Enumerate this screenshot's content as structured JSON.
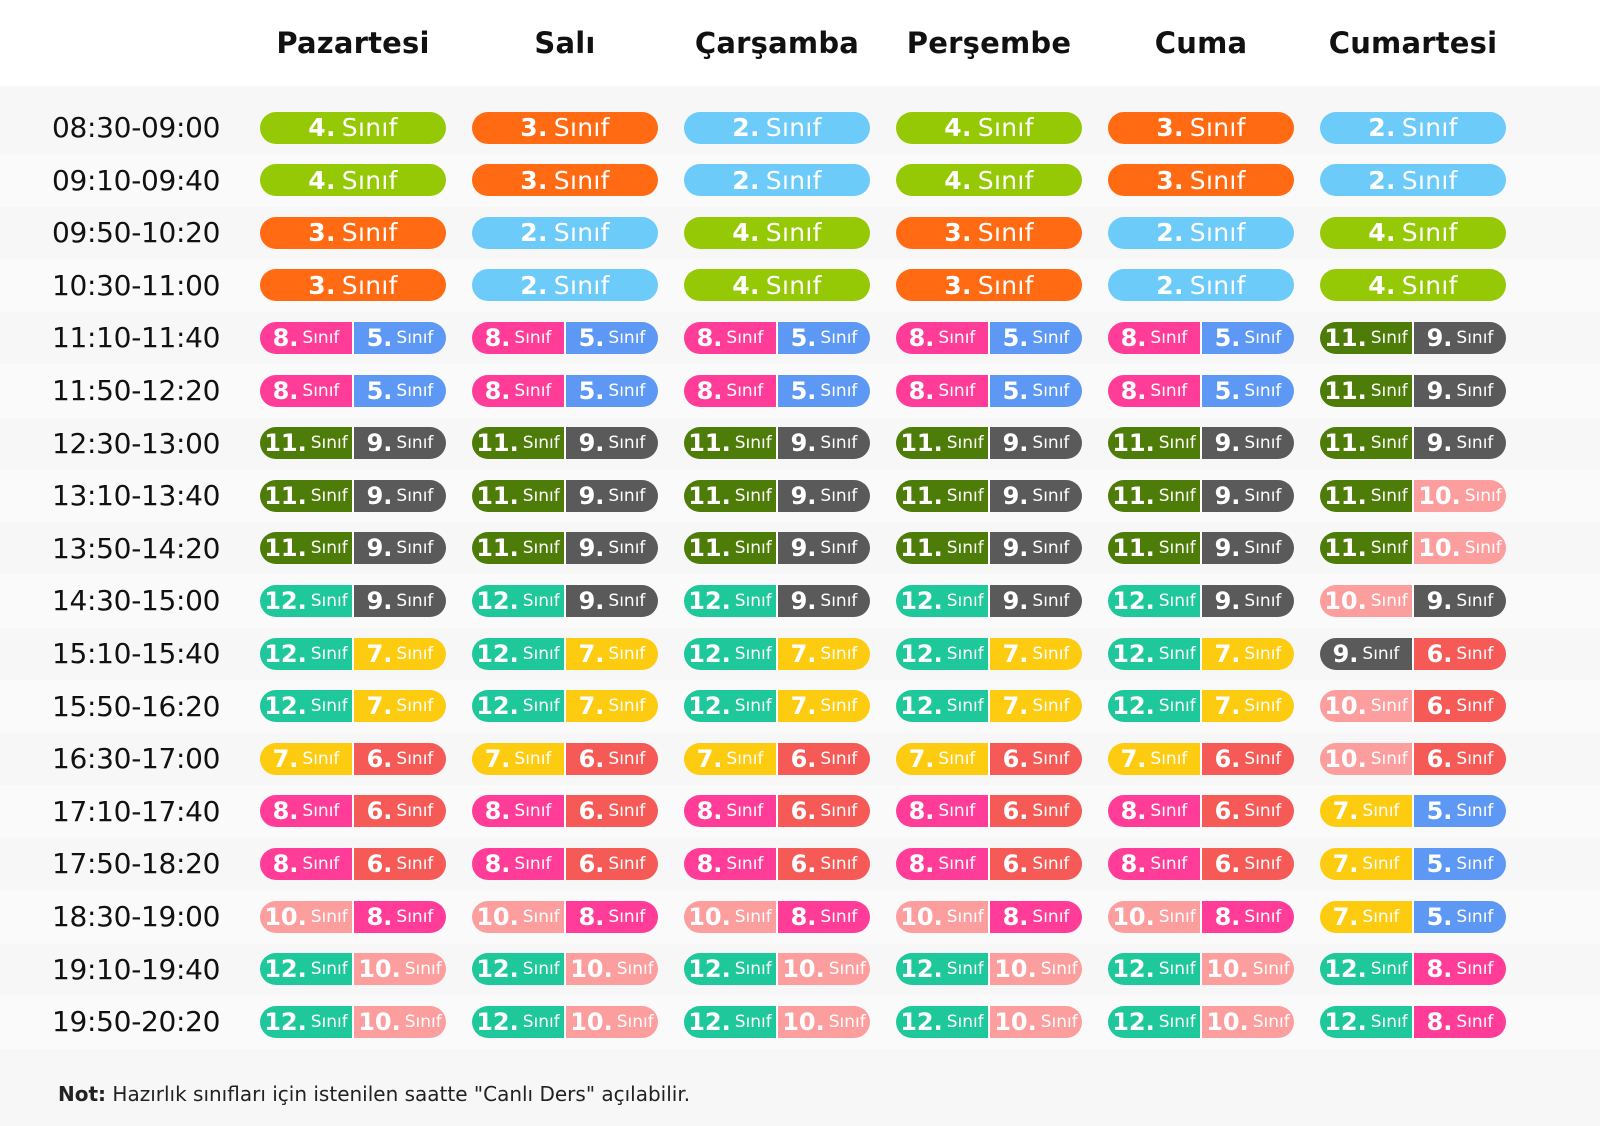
{
  "days": [
    "Pazartesi",
    "Salı",
    "Çarşamba",
    "Perşembe",
    "Cuma",
    "Cumartesi"
  ],
  "class_word": "Sınıf",
  "colors": {
    "2": "#6ccbf8",
    "3": "#ff6a13",
    "4": "#96c905",
    "5": "#5e98f5",
    "6": "#f65a57",
    "7": "#fdcb10",
    "8": "#ff3d98",
    "9": "#5a5a5a",
    "10": "#fc9e9e",
    "11": "#4d7d08",
    "12": "#1fc89b"
  },
  "schedule": [
    {
      "time": "08:30-09:00",
      "slots": [
        [
          "4"
        ],
        [
          "3"
        ],
        [
          "2"
        ],
        [
          "4"
        ],
        [
          "3"
        ],
        [
          "2"
        ]
      ]
    },
    {
      "time": "09:10-09:40",
      "slots": [
        [
          "4"
        ],
        [
          "3"
        ],
        [
          "2"
        ],
        [
          "4"
        ],
        [
          "3"
        ],
        [
          "2"
        ]
      ]
    },
    {
      "time": "09:50-10:20",
      "slots": [
        [
          "3"
        ],
        [
          "2"
        ],
        [
          "4"
        ],
        [
          "3"
        ],
        [
          "2"
        ],
        [
          "4"
        ]
      ]
    },
    {
      "time": "10:30-11:00",
      "slots": [
        [
          "3"
        ],
        [
          "2"
        ],
        [
          "4"
        ],
        [
          "3"
        ],
        [
          "2"
        ],
        [
          "4"
        ]
      ]
    },
    {
      "time": "11:10-11:40",
      "slots": [
        [
          "8",
          "5"
        ],
        [
          "8",
          "5"
        ],
        [
          "8",
          "5"
        ],
        [
          "8",
          "5"
        ],
        [
          "8",
          "5"
        ],
        [
          "11",
          "9"
        ]
      ]
    },
    {
      "time": "11:50-12:20",
      "slots": [
        [
          "8",
          "5"
        ],
        [
          "8",
          "5"
        ],
        [
          "8",
          "5"
        ],
        [
          "8",
          "5"
        ],
        [
          "8",
          "5"
        ],
        [
          "11",
          "9"
        ]
      ]
    },
    {
      "time": "12:30-13:00",
      "slots": [
        [
          "11",
          "9"
        ],
        [
          "11",
          "9"
        ],
        [
          "11",
          "9"
        ],
        [
          "11",
          "9"
        ],
        [
          "11",
          "9"
        ],
        [
          "11",
          "9"
        ]
      ]
    },
    {
      "time": "13:10-13:40",
      "slots": [
        [
          "11",
          "9"
        ],
        [
          "11",
          "9"
        ],
        [
          "11",
          "9"
        ],
        [
          "11",
          "9"
        ],
        [
          "11",
          "9"
        ],
        [
          "11",
          "10"
        ]
      ]
    },
    {
      "time": "13:50-14:20",
      "slots": [
        [
          "11",
          "9"
        ],
        [
          "11",
          "9"
        ],
        [
          "11",
          "9"
        ],
        [
          "11",
          "9"
        ],
        [
          "11",
          "9"
        ],
        [
          "11",
          "10"
        ]
      ]
    },
    {
      "time": "14:30-15:00",
      "slots": [
        [
          "12",
          "9"
        ],
        [
          "12",
          "9"
        ],
        [
          "12",
          "9"
        ],
        [
          "12",
          "9"
        ],
        [
          "12",
          "9"
        ],
        [
          "10",
          "9"
        ]
      ]
    },
    {
      "time": "15:10-15:40",
      "slots": [
        [
          "12",
          "7"
        ],
        [
          "12",
          "7"
        ],
        [
          "12",
          "7"
        ],
        [
          "12",
          "7"
        ],
        [
          "12",
          "7"
        ],
        [
          "9",
          "6"
        ]
      ]
    },
    {
      "time": "15:50-16:20",
      "slots": [
        [
          "12",
          "7"
        ],
        [
          "12",
          "7"
        ],
        [
          "12",
          "7"
        ],
        [
          "12",
          "7"
        ],
        [
          "12",
          "7"
        ],
        [
          "10",
          "6"
        ]
      ]
    },
    {
      "time": "16:30-17:00",
      "slots": [
        [
          "7",
          "6"
        ],
        [
          "7",
          "6"
        ],
        [
          "7",
          "6"
        ],
        [
          "7",
          "6"
        ],
        [
          "7",
          "6"
        ],
        [
          "10",
          "6"
        ]
      ]
    },
    {
      "time": "17:10-17:40",
      "slots": [
        [
          "8",
          "6"
        ],
        [
          "8",
          "6"
        ],
        [
          "8",
          "6"
        ],
        [
          "8",
          "6"
        ],
        [
          "8",
          "6"
        ],
        [
          "7",
          "5"
        ]
      ]
    },
    {
      "time": "17:50-18:20",
      "slots": [
        [
          "8",
          "6"
        ],
        [
          "8",
          "6"
        ],
        [
          "8",
          "6"
        ],
        [
          "8",
          "6"
        ],
        [
          "8",
          "6"
        ],
        [
          "7",
          "5"
        ]
      ]
    },
    {
      "time": "18:30-19:00",
      "slots": [
        [
          "10",
          "8"
        ],
        [
          "10",
          "8"
        ],
        [
          "10",
          "8"
        ],
        [
          "10",
          "8"
        ],
        [
          "10",
          "8"
        ],
        [
          "7",
          "5"
        ]
      ]
    },
    {
      "time": "19:10-19:40",
      "slots": [
        [
          "12",
          "10"
        ],
        [
          "12",
          "10"
        ],
        [
          "12",
          "10"
        ],
        [
          "12",
          "10"
        ],
        [
          "12",
          "10"
        ],
        [
          "12",
          "8"
        ]
      ]
    },
    {
      "time": "19:50-20:20",
      "slots": [
        [
          "12",
          "10"
        ],
        [
          "12",
          "10"
        ],
        [
          "12",
          "10"
        ],
        [
          "12",
          "10"
        ],
        [
          "12",
          "10"
        ],
        [
          "12",
          "8"
        ]
      ]
    }
  ],
  "note": {
    "label": "Not:",
    "text": " Hazırlık sınıfları için istenilen saatte \"Canlı Ders\" açılabilir."
  }
}
